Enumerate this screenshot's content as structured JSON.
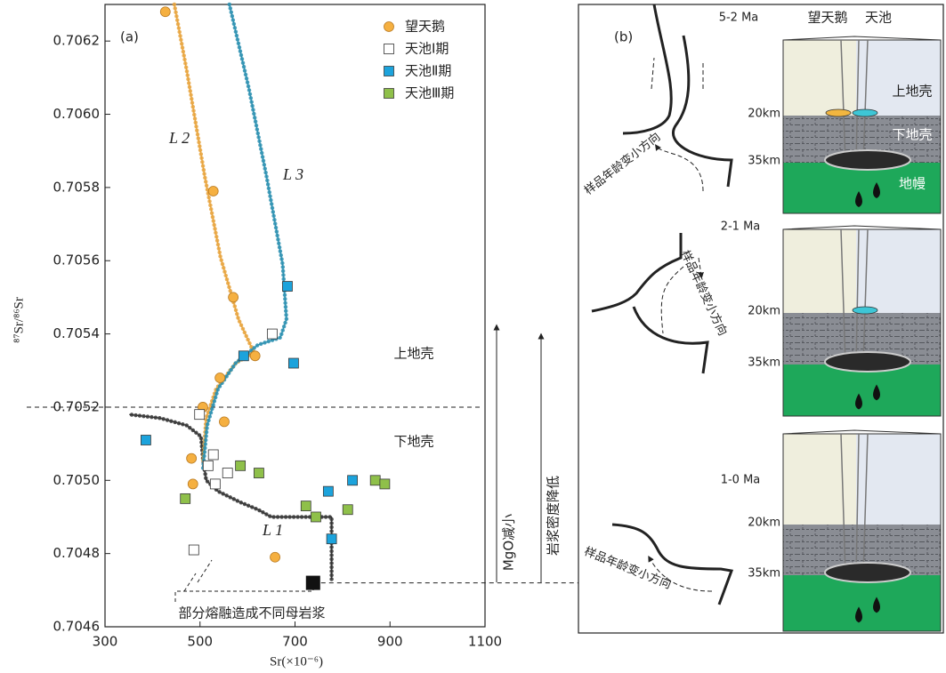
{
  "chart_data": {
    "type": "scatter",
    "panel_label": "(a)",
    "y_label": "⁸⁷Sr/⁸⁶Sr",
    "x_label": "Sr(×10⁻⁶)",
    "xlim": [
      300,
      1100
    ],
    "ylim": [
      0.7046,
      0.7063
    ],
    "xticks": [
      300,
      500,
      700,
      900,
      1100
    ],
    "yticks": [
      0.7046,
      0.7048,
      {
        "value": 0.705,
        "label": "0.7050"
      },
      0.7052,
      0.7054,
      0.7056,
      0.7058,
      {
        "value": 0.706,
        "label": "0.7060"
      },
      0.7062
    ],
    "series": [
      {
        "name": "望天鹅",
        "color": "#f5b041",
        "marker": "circle",
        "x": [
          427,
          528,
          570,
          616,
          542,
          506,
          551,
          482,
          485,
          658
        ],
        "values": [
          0.70628,
          0.70579,
          0.7055,
          0.70534,
          0.70528,
          0.7052,
          0.70516,
          0.70506,
          0.70499,
          0.70479
        ]
      },
      {
        "name": "天池Ⅰ期",
        "color": "#ffffff",
        "marker": "square",
        "x": [
          499,
          517,
          528,
          532,
          558,
          652,
          487
        ],
        "values": [
          0.70518,
          0.70504,
          0.70507,
          0.70499,
          0.70502,
          0.7054,
          0.70481
        ]
      },
      {
        "name": "天池Ⅱ期",
        "color": "#1ca3dc",
        "marker": "square",
        "x": [
          684,
          592,
          697,
          386,
          821,
          770,
          777
        ],
        "values": [
          0.70553,
          0.70534,
          0.70532,
          0.70511,
          0.705,
          0.70497,
          0.70484
        ]
      },
      {
        "name": "天池Ⅲ期",
        "color": "#8fc04a",
        "marker": "square",
        "x": [
          585,
          624,
          469,
          723,
          744,
          811,
          869,
          889
        ],
        "values": [
          0.70504,
          0.70502,
          0.70495,
          0.70493,
          0.7049,
          0.70492,
          0.705,
          0.70499
        ]
      }
    ],
    "curves": [
      {
        "name": "L 1",
        "color": "#333333",
        "x": [
          777,
          777,
          650,
          622,
          585,
          538,
          513,
          506,
          502,
          472,
          416,
          351
        ],
        "values": [
          0.70473,
          0.7049,
          0.7049,
          0.70492,
          0.70494,
          0.70497,
          0.705,
          0.70506,
          0.70512,
          0.70515,
          0.70517,
          0.70518
        ]
      },
      {
        "name": "L 2",
        "color": "#e8a33c",
        "x": [
          446,
          472,
          510,
          543,
          581,
          613,
          575,
          534,
          513,
          506
        ],
        "values": [
          0.7063,
          0.70612,
          0.70583,
          0.70561,
          0.70544,
          0.70535,
          0.70532,
          0.70525,
          0.70517,
          0.70505
        ]
      },
      {
        "name": "L 3",
        "color": "#2a8fb0",
        "x": [
          562,
          603,
          640,
          674,
          682,
          669,
          622,
          575,
          538,
          515,
          506
        ],
        "values": [
          0.7063,
          0.70607,
          0.70583,
          0.70559,
          0.70544,
          0.70539,
          0.70537,
          0.70532,
          0.70525,
          0.70515,
          0.70503
        ]
      }
    ],
    "boundary": 0.7052,
    "source": {
      "x": 738,
      "value": 0.70472
    },
    "annotations": {
      "upper_crust": "上地壳",
      "lower_crust": "下地壳",
      "mgo": "MgO减小",
      "density": "岩浆密度降低",
      "melting": "部分熔融造成不同母岩浆"
    }
  },
  "panel_b": {
    "label": "(b)",
    "stages": [
      {
        "age": "5-2 Ma",
        "direction": "样品年龄变小方向"
      },
      {
        "age": "2-1 Ma",
        "direction": "样品年龄变小方向"
      },
      {
        "age": "1-0 Ma",
        "direction": "样品年龄变小方向"
      }
    ],
    "volcanoes": [
      "望天鹅",
      "天池"
    ],
    "layers": [
      "上地壳",
      "下地壳",
      "地幔"
    ],
    "depths": [
      "20km",
      "35km"
    ]
  }
}
